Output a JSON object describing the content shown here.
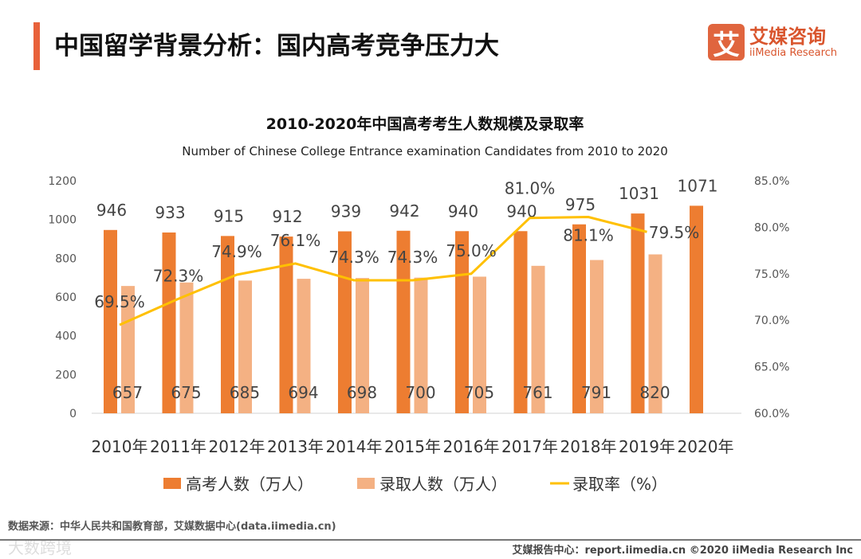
{
  "header": {
    "title": "中国留学背景分析：国内高考竞争压力大",
    "logo_mark": "艾",
    "logo_cn": "艾媒咨询",
    "logo_en": "iiMedia Research"
  },
  "chart_data": {
    "type": "bar+line",
    "title": "2010-2020年中国高考考生人数规模及录取率",
    "subtitle": "Number of Chinese College Entrance examination Candidates from 2010 to 2020",
    "categories": [
      "2010年",
      "2011年",
      "2012年",
      "2013年",
      "2014年",
      "2015年",
      "2016年",
      "2017年",
      "2018年",
      "2019年",
      "2020年"
    ],
    "series": [
      {
        "name": "高考人数（万人）",
        "type": "bar",
        "color": "#ed7d31",
        "values": [
          946,
          933,
          915,
          912,
          939,
          942,
          940,
          940,
          975,
          1031,
          1071
        ]
      },
      {
        "name": "录取人数（万人）",
        "type": "bar",
        "color": "#f4b183",
        "values": [
          657,
          675,
          685,
          694,
          698,
          700,
          705,
          761,
          791,
          820,
          null
        ]
      },
      {
        "name": "录取率（%）",
        "type": "line",
        "axis": "right",
        "color": "#ffc000",
        "values": [
          69.5,
          72.3,
          74.9,
          76.1,
          74.3,
          74.3,
          75.0,
          81.0,
          81.1,
          79.5,
          null
        ]
      }
    ],
    "yleft": {
      "ylim": [
        0,
        1200
      ],
      "ticks": [
        "0",
        "200",
        "400",
        "600",
        "800",
        "1000",
        "1200"
      ]
    },
    "yright": {
      "ylim": [
        60,
        85
      ],
      "ticks": [
        "60.0%",
        "65.0%",
        "70.0%",
        "75.0%",
        "80.0%",
        "85.0%"
      ]
    },
    "legend": "bottom"
  },
  "footer": {
    "source": "数据来源：中华人民共和国教育部，艾媒数据中心(data.iimedia.cn)",
    "watermark": "大数跨境",
    "credit": "艾媒报告中心：report.iimedia.cn   ©2020  iiMedia Research  Inc"
  }
}
